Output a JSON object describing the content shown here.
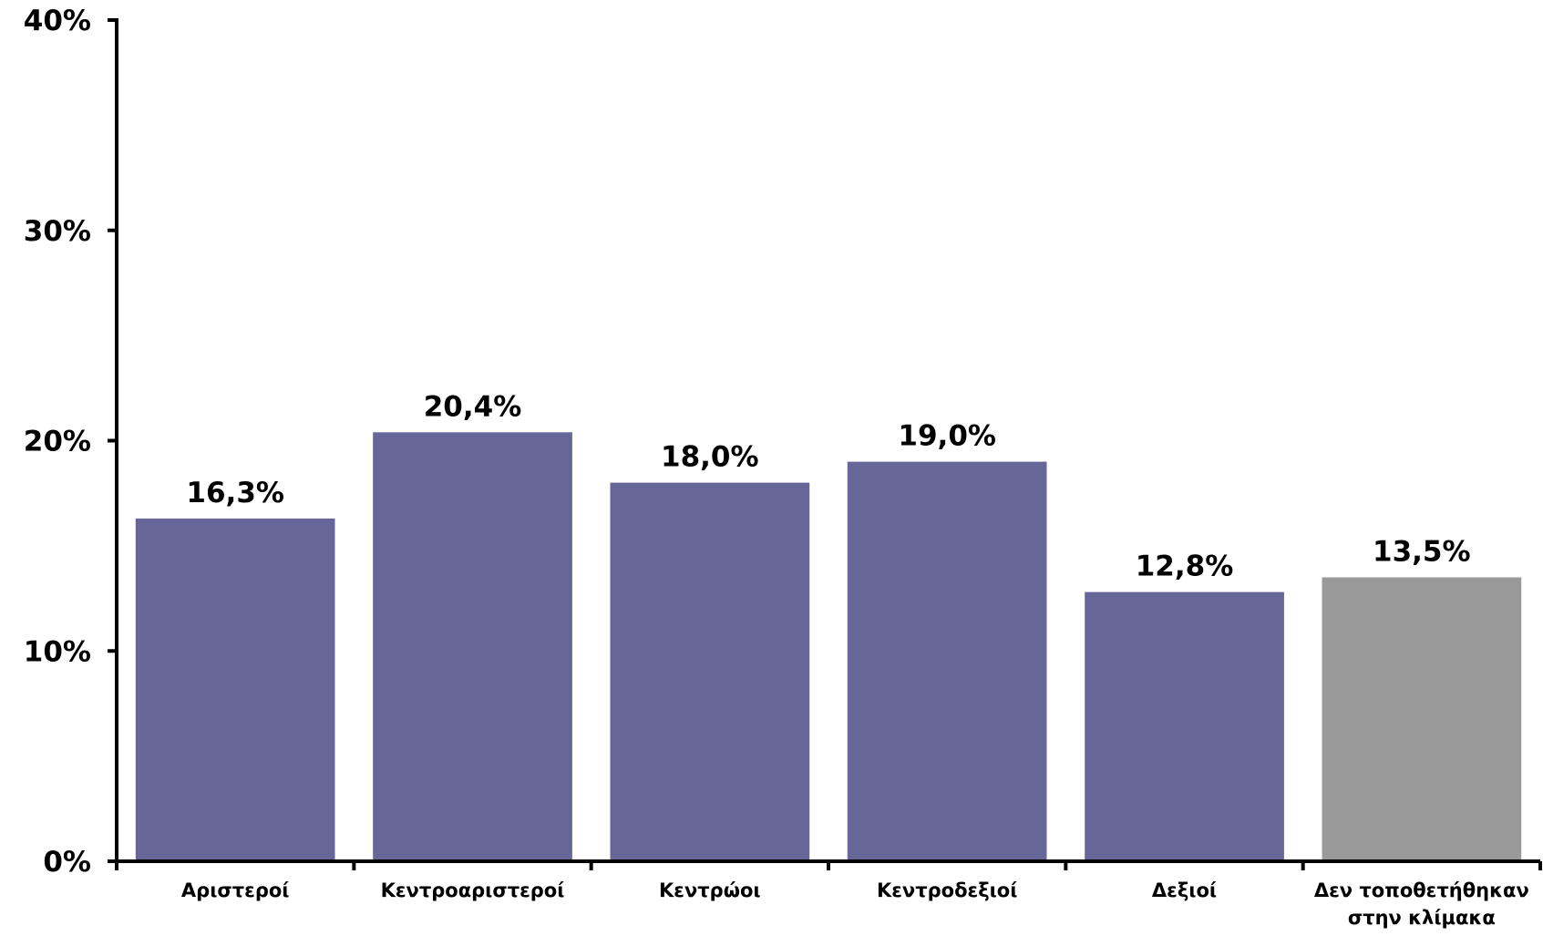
{
  "chart_data": {
    "type": "bar",
    "title": "",
    "xlabel": "",
    "ylabel": "",
    "ylim": [
      0,
      40
    ],
    "y_ticks": [
      "0%",
      "10%",
      "20%",
      "30%",
      "40%"
    ],
    "y_tick_values": [
      0,
      10,
      20,
      30,
      40
    ],
    "grid": false,
    "legend": "none",
    "categories": [
      [
        "Αριστεροί"
      ],
      [
        "Κεντροαριστεροί"
      ],
      [
        "Κεντρώοι"
      ],
      [
        "Κεντροδεξιοί"
      ],
      [
        "Δεξιοί"
      ],
      [
        "Δεν τοποθετήθηκαν",
        "στην κλίμακα"
      ]
    ],
    "values": [
      16.3,
      20.4,
      18.0,
      19.0,
      12.8,
      13.5
    ],
    "value_labels": [
      "16,3%",
      "20,4%",
      "18,0%",
      "19,0%",
      "12,8%",
      "13,5%"
    ],
    "bar_colors": [
      "#666699",
      "#666699",
      "#666699",
      "#666699",
      "#666699",
      "#999999"
    ],
    "axis_color": "#000000"
  }
}
